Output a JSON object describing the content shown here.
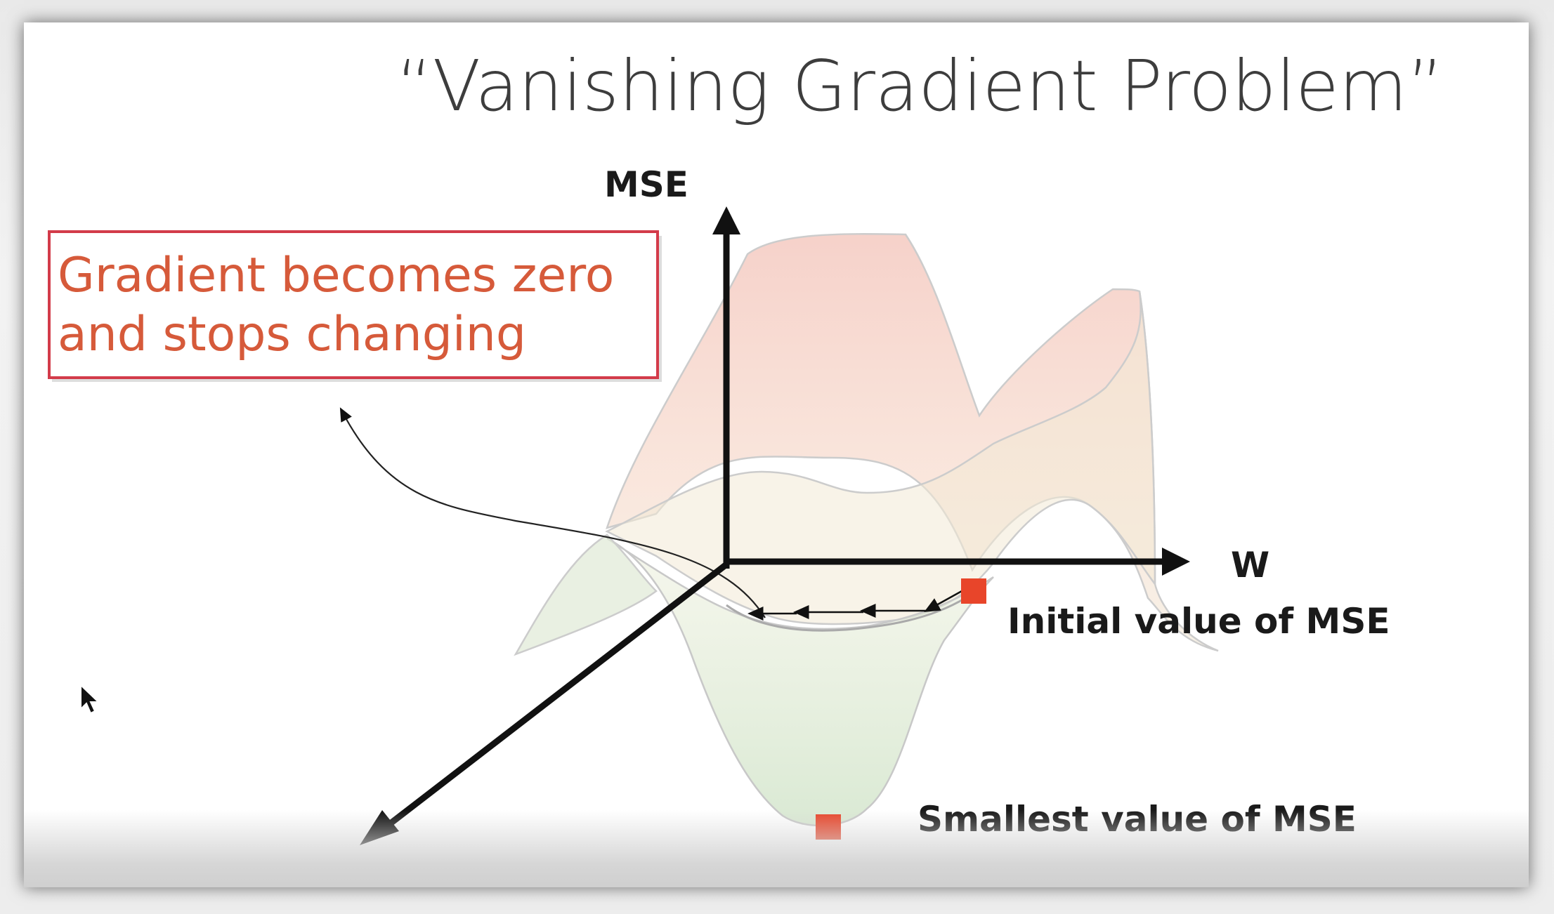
{
  "slide": {
    "title": "“Vanishing Gradient Problem”"
  },
  "axes": {
    "y_label": "MSE",
    "x_label": "W"
  },
  "callout": {
    "line1": "Gradient becomes zero",
    "line2": "and stops changing",
    "border_color": "#d33b4a",
    "text_color": "#d65a3a"
  },
  "annotations": {
    "initial": "Initial value of MSE",
    "smallest": "Smallest value of MSE"
  },
  "markers": {
    "color": "#e8452a"
  },
  "surface": {
    "upper_color": "#f4c9c0",
    "lower_color": "#cfe3c6"
  }
}
